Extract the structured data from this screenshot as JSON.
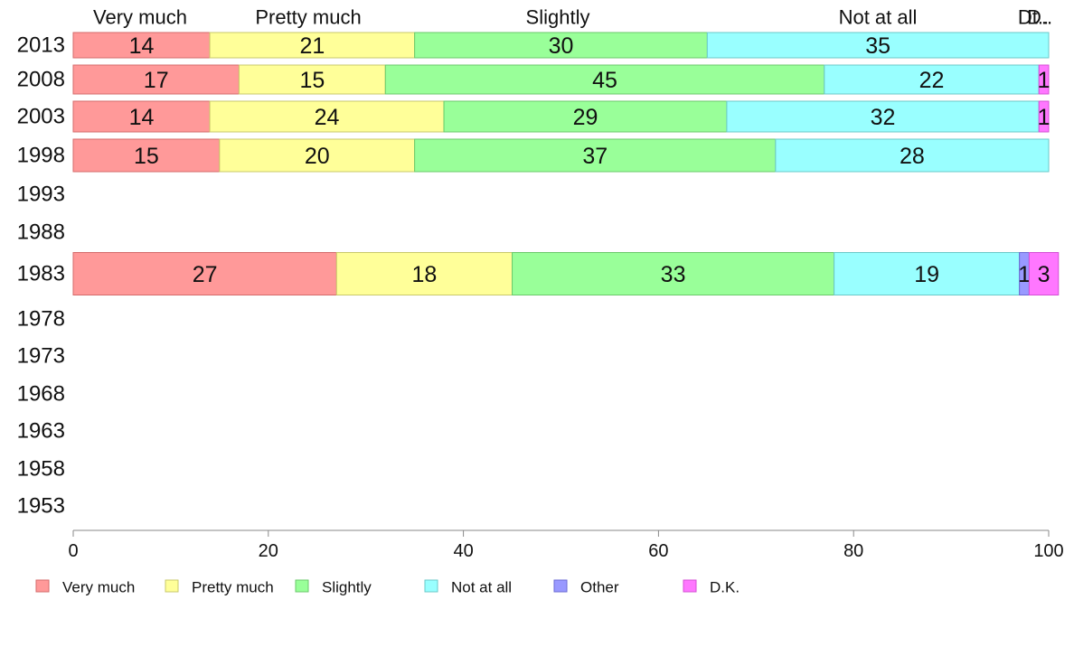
{
  "chart_data": {
    "type": "bar",
    "orientation": "horizontal",
    "stacked": true,
    "categories": [
      "2013",
      "2008",
      "2003",
      "1998",
      "1993",
      "1988",
      "1983",
      "1978",
      "1973",
      "1968",
      "1963",
      "1958",
      "1953"
    ],
    "series": [
      {
        "name": "Very much",
        "color": "#ff9999",
        "edge": "#d46a6a",
        "values": [
          14,
          17,
          14,
          15,
          null,
          null,
          27,
          null,
          null,
          null,
          null,
          null,
          null
        ]
      },
      {
        "name": "Pretty much",
        "color": "#ffff99",
        "edge": "#c9c96a",
        "values": [
          21,
          15,
          24,
          20,
          null,
          null,
          18,
          null,
          null,
          null,
          null,
          null,
          null
        ]
      },
      {
        "name": "Slightly",
        "color": "#99ff99",
        "edge": "#6ac96a",
        "values": [
          30,
          45,
          29,
          37,
          null,
          null,
          33,
          null,
          null,
          null,
          null,
          null,
          null
        ]
      },
      {
        "name": "Not at all",
        "color": "#99ffff",
        "edge": "#6ac9c9",
        "values": [
          35,
          22,
          32,
          28,
          null,
          null,
          19,
          null,
          null,
          null,
          null,
          null,
          null
        ]
      },
      {
        "name": "Other",
        "color": "#9999ff",
        "edge": "#6a6ad4",
        "values": [
          null,
          null,
          null,
          null,
          null,
          null,
          1,
          null,
          null,
          null,
          null,
          null,
          null
        ]
      },
      {
        "name": "D.K.",
        "color": "#ff77ff",
        "edge": "#d44fd4",
        "values": [
          null,
          1,
          1,
          null,
          null,
          null,
          3,
          null,
          null,
          null,
          null,
          null,
          null
        ]
      }
    ],
    "top_labels": [
      "Very much",
      "Pretty much",
      "Slightly",
      "Not at all",
      "Dt..",
      "D.."
    ],
    "xlim": [
      0,
      100
    ],
    "xticks": [
      0,
      20,
      40,
      60,
      80,
      100
    ],
    "grid": false,
    "legend_position": "bottom"
  }
}
